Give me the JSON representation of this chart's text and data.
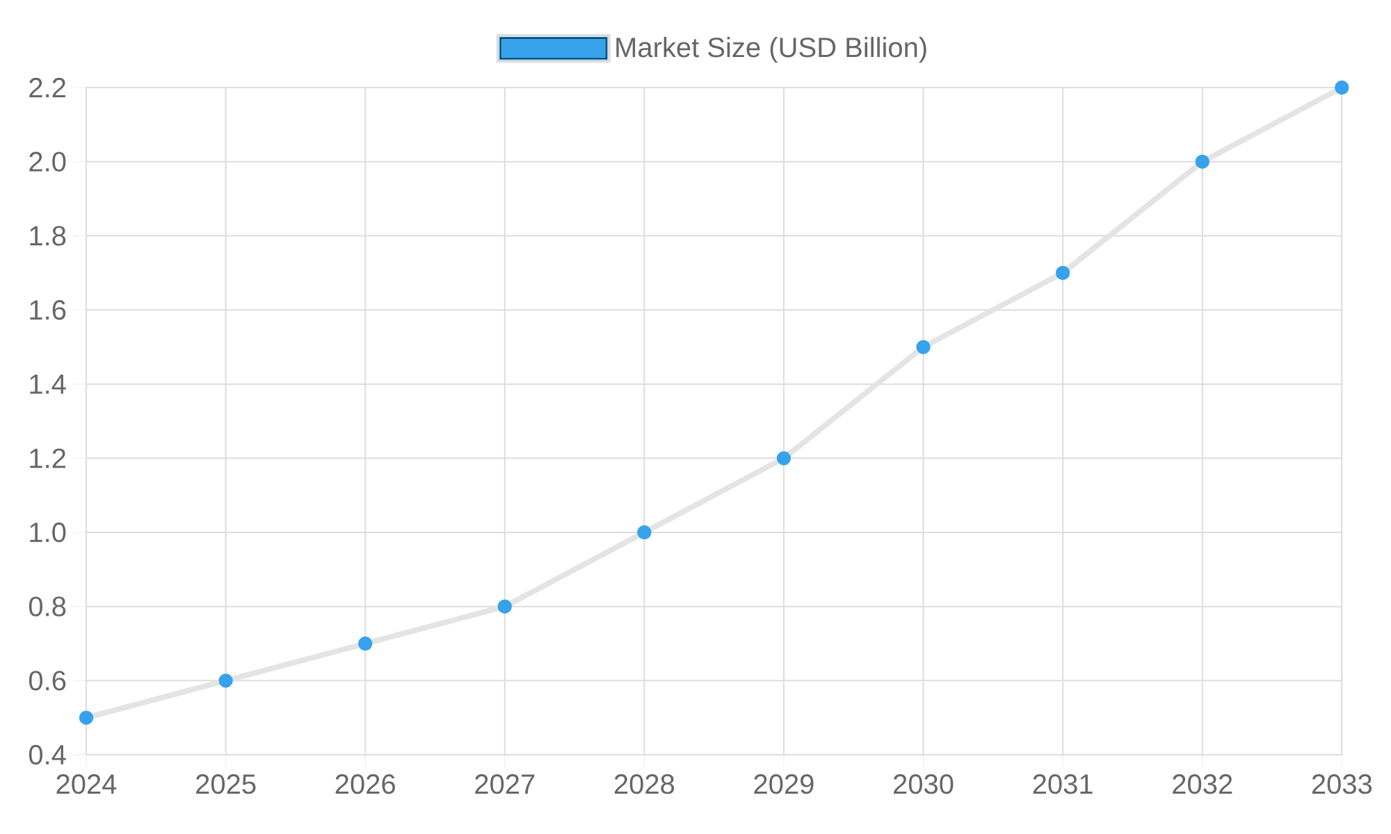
{
  "chart_data": {
    "type": "line",
    "categories": [
      "2024",
      "2025",
      "2026",
      "2027",
      "2028",
      "2029",
      "2030",
      "2031",
      "2032",
      "2033"
    ],
    "series": [
      {
        "name": "Market Size (USD Billion)",
        "color": "#36a2eb",
        "values": [
          0.5,
          0.6,
          0.7,
          0.8,
          1.0,
          1.2,
          1.5,
          1.7,
          2.0,
          2.2
        ]
      }
    ],
    "ylim": [
      0.4,
      2.2
    ],
    "yticks": [
      0.4,
      0.6,
      0.8,
      {
        "value": 1.0,
        "label": "1.0"
      },
      1.2,
      1.4,
      1.6,
      1.8,
      {
        "value": 2.0,
        "label": "2.0"
      },
      2.2
    ],
    "grid": true,
    "legend": "top",
    "marker": "circle"
  }
}
